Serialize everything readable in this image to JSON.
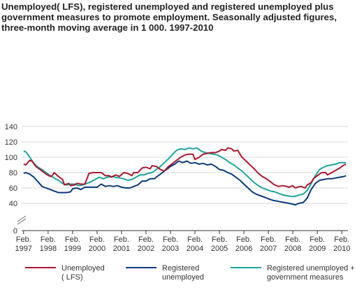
{
  "chart_data": {
    "type": "line",
    "title_lines": [
      "Unemployed( LFS), registered unemployed and registered unemployed plus",
      "government measures to promote employment. Seasonally adjusted figures,",
      "three-month moving average in 1 000. 1997-2010"
    ],
    "xlabel": "",
    "ylabel": "",
    "x_range": [
      1997.0,
      2010.33
    ],
    "ylim": [
      0,
      140
    ],
    "y_axis_break": true,
    "y_ticks": [
      {
        "value": 0,
        "label": "0"
      },
      {
        "value": 40,
        "label": "40"
      },
      {
        "value": 60,
        "label": "60"
      },
      {
        "value": 80,
        "label": "80"
      },
      {
        "value": 100,
        "label": "100"
      },
      {
        "value": 120,
        "label": "120"
      },
      {
        "value": 140,
        "label": "140"
      }
    ],
    "x_ticks": [
      {
        "value": 1997.08,
        "month": "Feb.",
        "year": "1997"
      },
      {
        "value": 1998.08,
        "month": "Feb.",
        "year": "1998"
      },
      {
        "value": 1999.08,
        "month": "Feb.",
        "year": "1999"
      },
      {
        "value": 2000.08,
        "month": "Feb.",
        "year": "2000"
      },
      {
        "value": 2001.08,
        "month": "Feb.",
        "year": "2001"
      },
      {
        "value": 2002.08,
        "month": "Feb.",
        "year": "2002"
      },
      {
        "value": 2003.08,
        "month": "Feb.",
        "year": "2003"
      },
      {
        "value": 2004.08,
        "month": "Feb.",
        "year": "2004"
      },
      {
        "value": 2005.08,
        "month": "Feb.",
        "year": "2005"
      },
      {
        "value": 2006.08,
        "month": "Feb.",
        "year": "2006"
      },
      {
        "value": 2007.08,
        "month": "Feb.",
        "year": "2007"
      },
      {
        "value": 2008.08,
        "month": "Feb.",
        "year": "2008"
      },
      {
        "value": 2009.08,
        "month": "Feb.",
        "year": "2009"
      },
      {
        "value": 2010.08,
        "month": "Feb.",
        "year": "2010"
      }
    ],
    "grid": "horizontal",
    "legend_position": "bottom",
    "series": [
      {
        "name_lines": [
          "Unemployed",
          "( LFS)"
        ],
        "color": "#a6192e",
        "points": [
          [
            1997.08,
            91
          ],
          [
            1997.17,
            90
          ],
          [
            1997.33,
            96
          ],
          [
            1997.42,
            95
          ],
          [
            1997.58,
            88
          ],
          [
            1997.75,
            84
          ],
          [
            1997.92,
            80
          ],
          [
            1998.0,
            78
          ],
          [
            1998.17,
            75
          ],
          [
            1998.25,
            76
          ],
          [
            1998.33,
            80
          ],
          [
            1998.5,
            75
          ],
          [
            1998.67,
            71
          ],
          [
            1998.75,
            64
          ],
          [
            1998.92,
            66
          ],
          [
            1999.0,
            63
          ],
          [
            1999.17,
            64
          ],
          [
            1999.25,
            66
          ],
          [
            1999.42,
            65
          ],
          [
            1999.58,
            65
          ],
          [
            1999.67,
            72
          ],
          [
            1999.75,
            79
          ],
          [
            1999.92,
            80
          ],
          [
            2000.08,
            80
          ],
          [
            2000.25,
            80
          ],
          [
            2000.42,
            76
          ],
          [
            2000.58,
            76
          ],
          [
            2000.67,
            74
          ],
          [
            2000.83,
            77
          ],
          [
            2001.0,
            75
          ],
          [
            2001.17,
            80
          ],
          [
            2001.33,
            79
          ],
          [
            2001.5,
            76
          ],
          [
            2001.58,
            80
          ],
          [
            2001.75,
            80
          ],
          [
            2001.92,
            86
          ],
          [
            2002.08,
            87
          ],
          [
            2002.25,
            85
          ],
          [
            2002.33,
            89
          ],
          [
            2002.5,
            88
          ],
          [
            2002.67,
            84
          ],
          [
            2002.83,
            82
          ],
          [
            2003.0,
            88
          ],
          [
            2003.17,
            92
          ],
          [
            2003.33,
            96
          ],
          [
            2003.5,
            100
          ],
          [
            2003.67,
            103
          ],
          [
            2003.83,
            104
          ],
          [
            2004.0,
            104
          ],
          [
            2004.08,
            97
          ],
          [
            2004.25,
            100
          ],
          [
            2004.42,
            104
          ],
          [
            2004.58,
            105
          ],
          [
            2004.75,
            106
          ],
          [
            2004.92,
            106
          ],
          [
            2005.08,
            108
          ],
          [
            2005.17,
            110
          ],
          [
            2005.33,
            109
          ],
          [
            2005.42,
            112
          ],
          [
            2005.58,
            111
          ],
          [
            2005.67,
            108
          ],
          [
            2005.83,
            109
          ],
          [
            2006.0,
            100
          ],
          [
            2006.17,
            95
          ],
          [
            2006.33,
            90
          ],
          [
            2006.5,
            85
          ],
          [
            2006.67,
            79
          ],
          [
            2006.83,
            75
          ],
          [
            2007.0,
            72
          ],
          [
            2007.17,
            68
          ],
          [
            2007.33,
            64
          ],
          [
            2007.5,
            62
          ],
          [
            2007.67,
            63
          ],
          [
            2007.83,
            62
          ],
          [
            2007.92,
            61
          ],
          [
            2008.08,
            63
          ],
          [
            2008.17,
            60
          ],
          [
            2008.25,
            61
          ],
          [
            2008.42,
            62
          ],
          [
            2008.58,
            60
          ],
          [
            2008.67,
            64
          ],
          [
            2008.83,
            67
          ],
          [
            2008.92,
            72
          ],
          [
            2009.08,
            76
          ],
          [
            2009.25,
            80
          ],
          [
            2009.42,
            80
          ],
          [
            2009.5,
            77
          ],
          [
            2009.67,
            80
          ],
          [
            2009.83,
            83
          ],
          [
            2010.0,
            86
          ],
          [
            2010.17,
            90
          ],
          [
            2010.25,
            91
          ]
        ]
      },
      {
        "name_lines": [
          "Registered",
          "unemployed"
        ],
        "color": "#0a3a7a",
        "points": [
          [
            1997.08,
            79
          ],
          [
            1997.17,
            80
          ],
          [
            1997.33,
            78
          ],
          [
            1997.5,
            74
          ],
          [
            1997.67,
            68
          ],
          [
            1997.83,
            62
          ],
          [
            1998.0,
            60
          ],
          [
            1998.17,
            58
          ],
          [
            1998.33,
            56
          ],
          [
            1998.5,
            54
          ],
          [
            1998.67,
            54
          ],
          [
            1998.83,
            54
          ],
          [
            1999.0,
            55
          ],
          [
            1999.08,
            59
          ],
          [
            1999.25,
            60
          ],
          [
            1999.42,
            58
          ],
          [
            1999.58,
            61
          ],
          [
            1999.75,
            61
          ],
          [
            1999.92,
            61
          ],
          [
            2000.08,
            61
          ],
          [
            2000.25,
            65
          ],
          [
            2000.42,
            62
          ],
          [
            2000.58,
            63
          ],
          [
            2000.75,
            62
          ],
          [
            2000.92,
            63
          ],
          [
            2001.08,
            61
          ],
          [
            2001.25,
            60
          ],
          [
            2001.42,
            60
          ],
          [
            2001.58,
            62
          ],
          [
            2001.75,
            64
          ],
          [
            2001.92,
            69
          ],
          [
            2002.08,
            69
          ],
          [
            2002.25,
            72
          ],
          [
            2002.42,
            72
          ],
          [
            2002.58,
            76
          ],
          [
            2002.75,
            80
          ],
          [
            2002.92,
            84
          ],
          [
            2003.08,
            88
          ],
          [
            2003.25,
            91
          ],
          [
            2003.42,
            95
          ],
          [
            2003.58,
            93
          ],
          [
            2003.75,
            95
          ],
          [
            2003.92,
            92
          ],
          [
            2004.08,
            93
          ],
          [
            2004.25,
            91
          ],
          [
            2004.42,
            92
          ],
          [
            2004.58,
            90
          ],
          [
            2004.75,
            91
          ],
          [
            2004.92,
            88
          ],
          [
            2005.08,
            84
          ],
          [
            2005.25,
            83
          ],
          [
            2005.42,
            80
          ],
          [
            2005.58,
            78
          ],
          [
            2005.75,
            74
          ],
          [
            2005.92,
            70
          ],
          [
            2006.08,
            65
          ],
          [
            2006.25,
            60
          ],
          [
            2006.42,
            55
          ],
          [
            2006.58,
            52
          ],
          [
            2006.75,
            50
          ],
          [
            2006.92,
            48
          ],
          [
            2007.08,
            46
          ],
          [
            2007.25,
            44
          ],
          [
            2007.42,
            43
          ],
          [
            2007.58,
            42
          ],
          [
            2007.75,
            41
          ],
          [
            2007.92,
            40
          ],
          [
            2008.08,
            39
          ],
          [
            2008.17,
            38
          ],
          [
            2008.33,
            40
          ],
          [
            2008.5,
            41
          ],
          [
            2008.67,
            47
          ],
          [
            2008.83,
            58
          ],
          [
            2009.0,
            66
          ],
          [
            2009.17,
            70
          ],
          [
            2009.33,
            71
          ],
          [
            2009.5,
            72
          ],
          [
            2009.67,
            72
          ],
          [
            2009.83,
            73
          ],
          [
            2010.0,
            74
          ],
          [
            2010.17,
            75
          ],
          [
            2010.25,
            76
          ]
        ]
      },
      {
        "name_lines": [
          "Registered unemployed +",
          "government measures"
        ],
        "color": "#1ea39a",
        "points": [
          [
            1997.08,
            108
          ],
          [
            1997.17,
            107
          ],
          [
            1997.33,
            100
          ],
          [
            1997.5,
            92
          ],
          [
            1997.67,
            87
          ],
          [
            1997.83,
            84
          ],
          [
            1998.0,
            80
          ],
          [
            1998.17,
            76
          ],
          [
            1998.33,
            73
          ],
          [
            1998.5,
            70
          ],
          [
            1998.67,
            66
          ],
          [
            1998.83,
            64
          ],
          [
            1999.0,
            65
          ],
          [
            1999.17,
            65
          ],
          [
            1999.33,
            63
          ],
          [
            1999.5,
            64
          ],
          [
            1999.67,
            66
          ],
          [
            1999.83,
            68
          ],
          [
            2000.0,
            71
          ],
          [
            2000.17,
            74
          ],
          [
            2000.33,
            72
          ],
          [
            2000.5,
            74
          ],
          [
            2000.67,
            75
          ],
          [
            2000.83,
            74
          ],
          [
            2001.0,
            73
          ],
          [
            2001.17,
            72
          ],
          [
            2001.33,
            70
          ],
          [
            2001.5,
            71
          ],
          [
            2001.67,
            74
          ],
          [
            2001.83,
            77
          ],
          [
            2002.0,
            77
          ],
          [
            2002.17,
            79
          ],
          [
            2002.33,
            80
          ],
          [
            2002.5,
            84
          ],
          [
            2002.67,
            88
          ],
          [
            2002.83,
            93
          ],
          [
            2003.0,
            98
          ],
          [
            2003.17,
            104
          ],
          [
            2003.33,
            109
          ],
          [
            2003.5,
            111
          ],
          [
            2003.67,
            110
          ],
          [
            2003.83,
            112
          ],
          [
            2004.0,
            111
          ],
          [
            2004.17,
            112
          ],
          [
            2004.33,
            108
          ],
          [
            2004.5,
            106
          ],
          [
            2004.67,
            105
          ],
          [
            2004.83,
            104
          ],
          [
            2005.0,
            103
          ],
          [
            2005.17,
            100
          ],
          [
            2005.33,
            97
          ],
          [
            2005.5,
            93
          ],
          [
            2005.67,
            90
          ],
          [
            2005.83,
            86
          ],
          [
            2006.0,
            82
          ],
          [
            2006.17,
            77
          ],
          [
            2006.33,
            72
          ],
          [
            2006.5,
            67
          ],
          [
            2006.67,
            63
          ],
          [
            2006.83,
            60
          ],
          [
            2007.0,
            58
          ],
          [
            2007.17,
            56
          ],
          [
            2007.33,
            55
          ],
          [
            2007.5,
            53
          ],
          [
            2007.67,
            51
          ],
          [
            2007.83,
            50
          ],
          [
            2008.0,
            49
          ],
          [
            2008.17,
            49
          ],
          [
            2008.33,
            51
          ],
          [
            2008.5,
            52
          ],
          [
            2008.67,
            57
          ],
          [
            2008.83,
            66
          ],
          [
            2009.0,
            76
          ],
          [
            2009.17,
            84
          ],
          [
            2009.33,
            87
          ],
          [
            2009.5,
            89
          ],
          [
            2009.67,
            90
          ],
          [
            2009.83,
            91
          ],
          [
            2010.0,
            93
          ],
          [
            2010.17,
            93
          ],
          [
            2010.25,
            93
          ]
        ]
      }
    ]
  }
}
